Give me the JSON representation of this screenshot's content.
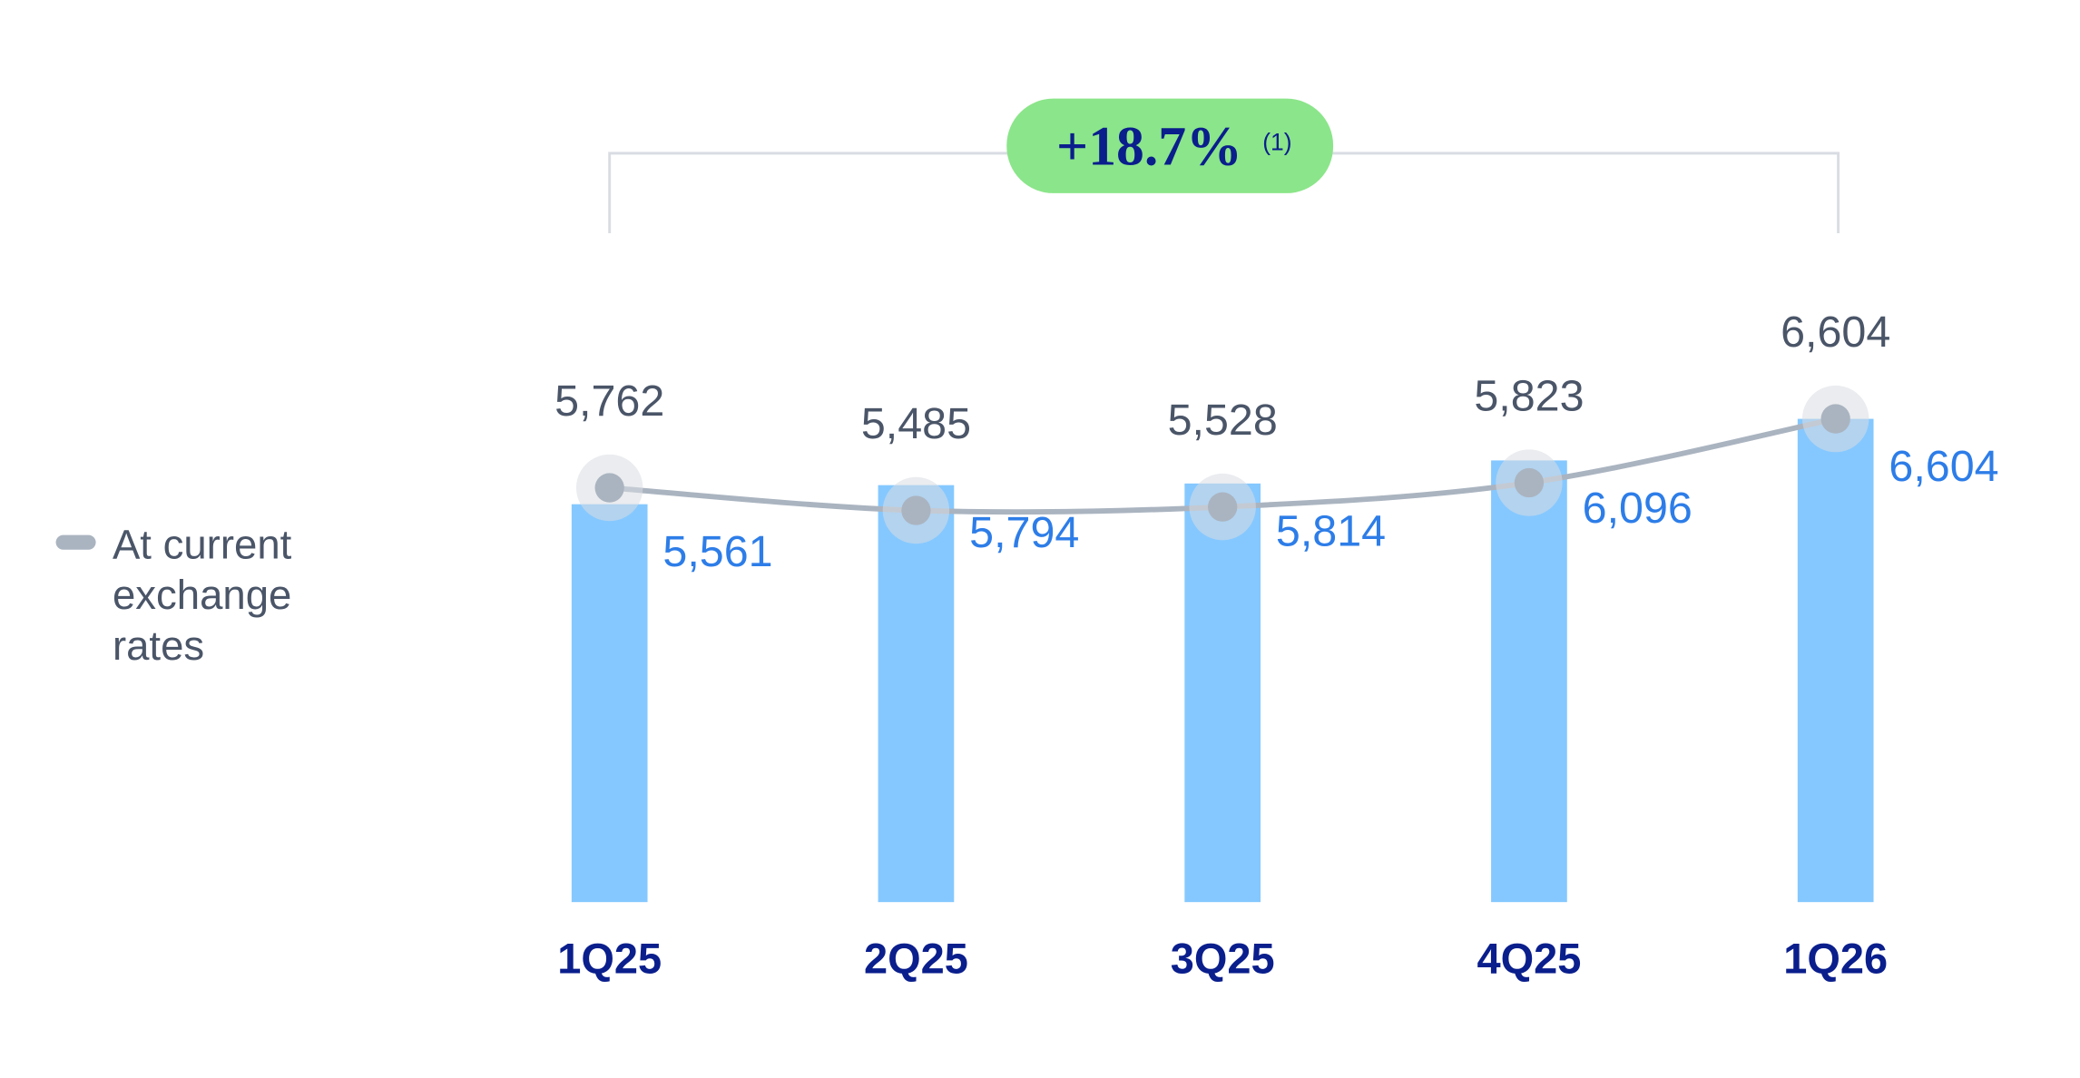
{
  "chart_data": {
    "type": "bar",
    "annotation": "+18.7%",
    "annotation_note": "(1)",
    "categories": [
      "1Q25",
      "2Q25",
      "3Q25",
      "4Q25",
      "1Q26"
    ],
    "series": [
      {
        "type": "bar",
        "color": "#85c8ff",
        "label_color": "#2d7de8",
        "values": [
          5561,
          5794,
          5814,
          6096,
          6604
        ],
        "value_labels": [
          "5,561",
          "5,794",
          "5,814",
          "6,096",
          "6,604"
        ]
      },
      {
        "type": "line",
        "name": "At current exchange rates",
        "color": "#aab4c0",
        "label_color": "#4a5568",
        "values": [
          5762,
          5485,
          5528,
          5823,
          6604
        ],
        "value_labels": [
          "5,762",
          "5,485",
          "5,528",
          "5,823",
          "6,604"
        ]
      }
    ],
    "ylim": [
      700,
      7000
    ],
    "grid": false
  }
}
